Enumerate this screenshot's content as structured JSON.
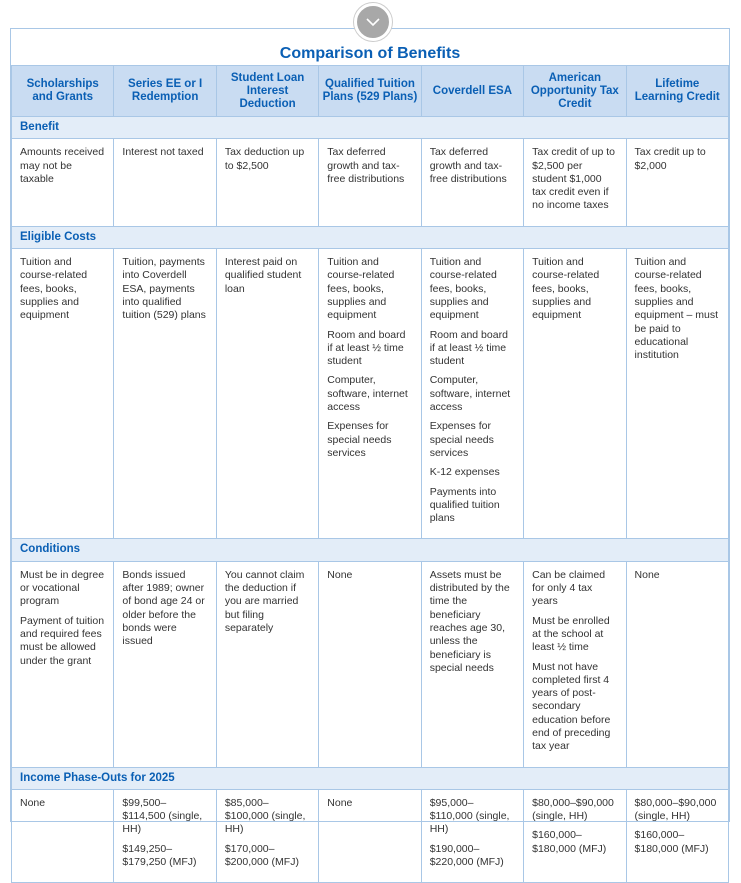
{
  "title": "Comparison of Benefits",
  "toggle_icon": "chevron-down-icon",
  "colors": {
    "accent": "#0a5fb4",
    "header_bg": "#c9dcf2",
    "section_bg": "#e3edf8",
    "border": "#a9c7e6"
  },
  "columns": [
    "Scholarships and Grants",
    "Series EE or I Redemption",
    "Student Loan Interest Deduction",
    "Qualified Tuition Plans (529 Plans)",
    "Coverdell ESA",
    "American Opportunity Tax Credit",
    "Lifetime Learning Credit"
  ],
  "sections": [
    {
      "label": "Benefit",
      "height": 68,
      "cells": [
        [
          "Amounts received may not be taxable"
        ],
        [
          "Interest not taxed"
        ],
        [
          "Tax deduction up to $2,500"
        ],
        [
          "Tax deferred growth and tax-free distributions"
        ],
        [
          "Tax deferred growth and tax-free distributions"
        ],
        [
          "Tax credit of up to $2,500 per student $1,000 tax credit even if no income taxes"
        ],
        [
          "Tax credit up to $2,000"
        ]
      ]
    },
    {
      "label": "Eligible Costs",
      "height": 258,
      "cells": [
        [
          "Tuition and course-related fees, books, supplies and equipment"
        ],
        [
          "Tuition, payments into Coverdell ESA, payments into qualified tuition (529) plans"
        ],
        [
          "Interest paid on qualified student loan"
        ],
        [
          "Tuition and course-related fees, books, supplies and equipment",
          "Room and board if at least ½ time student",
          "Computer, software, internet access",
          "Expenses for special needs services"
        ],
        [
          "Tuition and course-related fees, books, supplies and equipment",
          "Room and board if at least ½ time student",
          "Computer, software, internet access",
          "Expenses for special needs services",
          "K-12 expenses",
          "Payments into qualified tuition plans"
        ],
        [
          "Tuition and course-related fees, books, supplies and equipment"
        ],
        [
          "Tuition and course-related fees, books, supplies and equipment – must be paid to educational institution"
        ]
      ]
    },
    {
      "label": "Conditions",
      "height": 172,
      "cells": [
        [
          "Must be in degree or vocational program",
          "Payment of tuition and required fees must be allowed under the grant"
        ],
        [
          "Bonds issued after 1989; owner of bond age 24 or older before the bonds were issued"
        ],
        [
          "You cannot claim the deduction if you are married but filing separately"
        ],
        [
          "None"
        ],
        [
          "Assets must be distributed by the time the beneficiary reaches age 30, unless the beneficiary is special needs"
        ],
        [
          "Can be claimed for only 4 tax years",
          "Must be enrolled at the school at least ½ time",
          "Must not have completed first 4 years of post-secondary education before end of preceding tax year"
        ],
        [
          "None"
        ]
      ]
    },
    {
      "label": "Income Phase-Outs for 2025",
      "height": 62,
      "cells": [
        [
          "None"
        ],
        [
          "$99,500–$114,500 (single, HH)",
          "$149,250–$179,250 (MFJ)"
        ],
        [
          "$85,000–$100,000 (single, HH)",
          "$170,000–$200,000 (MFJ)"
        ],
        [
          "None"
        ],
        [
          "$95,000–$110,000 (single, HH)",
          "$190,000–$220,000 (MFJ)"
        ],
        [
          "$80,000–$90,000 (single, HH)",
          "$160,000–$180,000 (MFJ)"
        ],
        [
          "$80,000–$90,000 (single, HH)",
          "$160,000–$180,000 (MFJ)"
        ]
      ]
    }
  ]
}
